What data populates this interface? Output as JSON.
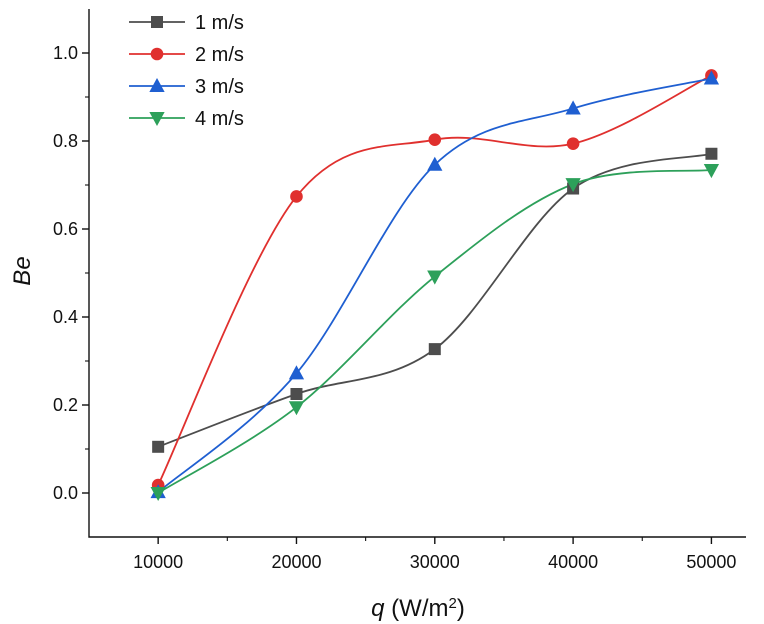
{
  "chart_data": {
    "type": "line",
    "xlabel": "q",
    "xlabel_unit_prefix": " (W/m",
    "xlabel_unit_sup": "2",
    "xlabel_unit_suffix": ")",
    "ylabel": "Be",
    "x": [
      10000,
      20000,
      30000,
      40000,
      50000
    ],
    "xlim": [
      5000,
      52500
    ],
    "ylim": [
      -0.1,
      1.1
    ],
    "xticks": [
      10000,
      20000,
      30000,
      40000,
      50000
    ],
    "yticks": [
      0.0,
      0.2,
      0.4,
      0.6,
      0.8,
      1.0
    ],
    "xtick_labels": [
      "10000",
      "20000",
      "30000",
      "40000",
      "50000"
    ],
    "ytick_labels": [
      "0.0",
      "0.2",
      "0.4",
      "0.6",
      "0.8",
      "1.0"
    ],
    "grid": false,
    "legend_position": "top-left",
    "smooth": true,
    "series": [
      {
        "name": "1 m/s",
        "color": "#4d4d4d",
        "marker": "square",
        "values": [
          0.105,
          0.225,
          0.327,
          0.692,
          0.771
        ]
      },
      {
        "name": "2 m/s",
        "color": "#e0302e",
        "marker": "circle",
        "values": [
          0.018,
          0.674,
          0.803,
          0.794,
          0.949
        ]
      },
      {
        "name": "3 m/s",
        "color": "#1f5fd1",
        "marker": "triangle-up",
        "values": [
          0.002,
          0.272,
          0.746,
          0.874,
          0.942
        ]
      },
      {
        "name": "4 m/s",
        "color": "#2da05a",
        "marker": "triangle-down",
        "values": [
          0.0,
          0.195,
          0.492,
          0.702,
          0.734
        ]
      }
    ]
  }
}
